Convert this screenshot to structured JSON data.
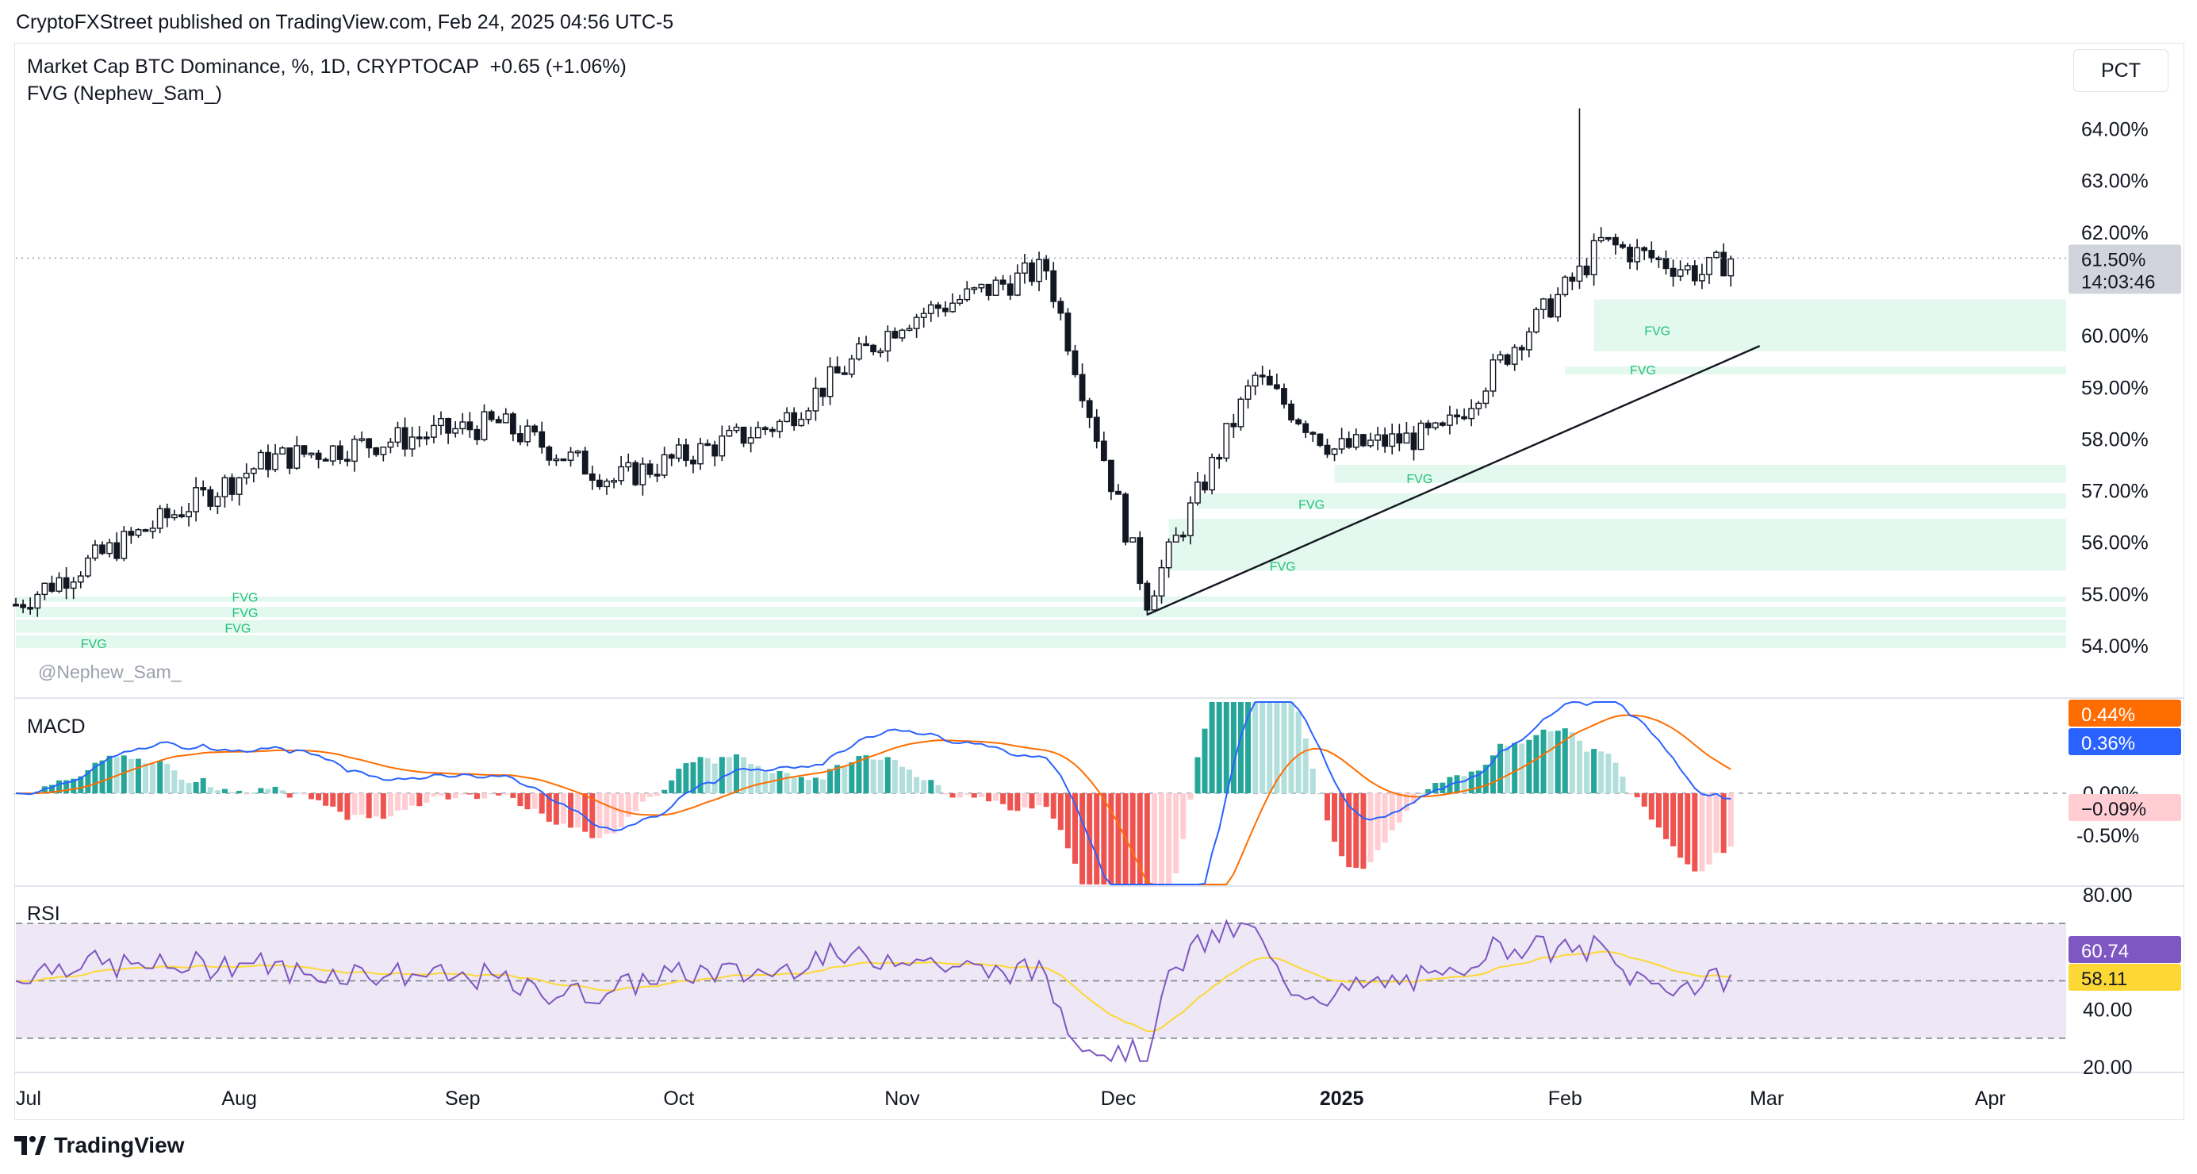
{
  "header": {
    "publisher": "CryptoFXStreet published on TradingView.com, Feb 24, 2025 04:56 UTC-5",
    "legend_main": "Market Cap BTC Dominance, %, 1D, CRYPTOCAP  +0.65 (+1.06%)",
    "legend_indicator": "FVG (Nephew_Sam_)",
    "scale_mode": "PCT",
    "watermark": "@Nephew_Sam_",
    "logo_text": "TradingView"
  },
  "colors": {
    "fvg_fill": "#e3f8ee",
    "fvg_label": "#22c27a",
    "macd_line": "#2962ff",
    "signal_line": "#ff6d00",
    "hist_pos_strong": "#26a69a",
    "hist_pos_weak": "#b2dfdb",
    "hist_neg_strong": "#ef5350",
    "hist_neg_weak": "#ffcdd2",
    "rsi_line": "#7e57c2",
    "rsi_ma": "#fdd835",
    "rsi_band": "#ede7f6"
  },
  "chart_data": [
    {
      "type": "candlestick",
      "title": "Market Cap BTC Dominance, %, 1D, CRYPTOCAP",
      "ylabel": "%",
      "ylim": [
        53.6,
        64.5
      ],
      "y_ticks": [
        "64.00%",
        "63.00%",
        "62.00%",
        "60.00%",
        "59.00%",
        "58.00%",
        "57.00%",
        "56.00%",
        "55.00%",
        "54.00%"
      ],
      "x_ticks": [
        "Jul",
        "Aug",
        "Sep",
        "Oct",
        "Nov",
        "Dec",
        "2025",
        "Feb",
        "Mar",
        "Apr"
      ],
      "last_price_label": "61.50%",
      "countdown_label": "14:03:46",
      "current_price": 61.5,
      "change": "+0.65 (+1.06%)",
      "key_points": [
        {
          "date": "2024-07-01",
          "close": 54.8
        },
        {
          "date": "2024-08-05",
          "close": 57.6
        },
        {
          "date": "2024-09-06",
          "close": 58.3
        },
        {
          "date": "2024-09-22",
          "close": 57.2
        },
        {
          "date": "2024-10-15",
          "close": 58.3
        },
        {
          "date": "2024-11-01",
          "close": 60.3
        },
        {
          "date": "2024-11-21",
          "close": 61.3
        },
        {
          "date": "2024-12-05",
          "close": 54.9
        },
        {
          "date": "2024-12-20",
          "close": 59.2
        },
        {
          "date": "2024-12-31",
          "close": 57.8
        },
        {
          "date": "2025-01-15",
          "close": 58.1
        },
        {
          "date": "2025-01-26",
          "close": 60.0
        },
        {
          "date": "2025-02-03",
          "high": 64.4,
          "close": 61.2
        },
        {
          "date": "2025-02-06",
          "close": 61.8
        },
        {
          "date": "2025-02-20",
          "close": 61.2
        },
        {
          "date": "2025-02-24",
          "close": 61.5
        }
      ],
      "trendline": {
        "from": {
          "date": "2024-12-05",
          "value": 54.6
        },
        "to": {
          "date": "2025-02-28",
          "value": 59.8
        }
      },
      "fvg_zones": [
        {
          "top": 60.7,
          "bottom": 59.7,
          "label": "FVG"
        },
        {
          "top": 59.4,
          "bottom": 59.25,
          "label": "FVG"
        },
        {
          "top": 57.5,
          "bottom": 57.15,
          "label": "FVG"
        },
        {
          "top": 56.95,
          "bottom": 56.65,
          "label": "FVG"
        },
        {
          "top": 56.45,
          "bottom": 55.45,
          "label": "FVG"
        },
        {
          "top": 54.95,
          "bottom": 54.85,
          "label": "FVG"
        },
        {
          "top": 54.75,
          "bottom": 54.55,
          "label": "FVG"
        },
        {
          "top": 54.5,
          "bottom": 54.25,
          "label": "FVG"
        },
        {
          "top": 54.2,
          "bottom": 53.95,
          "label": "FVG"
        }
      ]
    },
    {
      "type": "line",
      "title": "MACD",
      "ylim": [
        -0.6,
        0.6
      ],
      "y_ticks": [
        "0.00%",
        "-0.50%"
      ],
      "series": [
        {
          "name": "MACD",
          "last": "0.36%"
        },
        {
          "name": "Signal",
          "last": "0.44%"
        },
        {
          "name": "Histogram",
          "last": "−0.09%"
        }
      ]
    },
    {
      "type": "line",
      "title": "RSI",
      "ylim": [
        18,
        82
      ],
      "y_ticks": [
        "80.00",
        "40.00",
        "20.00"
      ],
      "bands": [
        70,
        50,
        30
      ],
      "series": [
        {
          "name": "RSI",
          "last": "60.74"
        },
        {
          "name": "RSI MA",
          "last": "58.11"
        }
      ]
    }
  ]
}
